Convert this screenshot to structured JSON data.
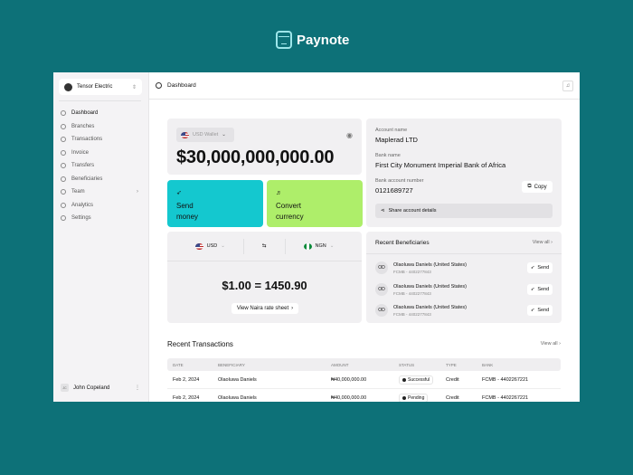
{
  "brand": {
    "name": "Paynote"
  },
  "sidebar": {
    "org": "Tensor Electric",
    "items": [
      {
        "label": "Dashboard"
      },
      {
        "label": "Branches"
      },
      {
        "label": "Transactions"
      },
      {
        "label": "Invoice"
      },
      {
        "label": "Transfers"
      },
      {
        "label": "Beneficiaries"
      },
      {
        "label": "Team"
      },
      {
        "label": "Analytics"
      },
      {
        "label": "Settings"
      }
    ],
    "user": {
      "initials": "JC",
      "name": "John Copeland"
    }
  },
  "header": {
    "title": "Dashboard"
  },
  "wallet": {
    "selector": "USD Wallet",
    "balance": "$30,000,000,000.00"
  },
  "actions": {
    "send": [
      "Send",
      "money"
    ],
    "convert": [
      "Convert",
      "currency"
    ]
  },
  "colors": {
    "send": "#14c8cf",
    "convert": "#aeee6a",
    "background": "#0d7178"
  },
  "converter": {
    "from": "USD",
    "to": "NGN",
    "rate": "$1.00 = 1450.90",
    "rate_sheet": "View Naira rate sheet"
  },
  "account": {
    "name_label": "Account name",
    "name": "Maplerad LTD",
    "bank_label": "Bank name",
    "bank": "First City Monument Imperial Bank of Africa",
    "number_label": "Bank account number",
    "number": "0121689727",
    "copy": "Copy",
    "share": "Share account details"
  },
  "beneficiaries": {
    "title": "Recent Beneficiaries",
    "view_all": "View all",
    "items": [
      {
        "initials": "OD",
        "name": "Olaoluwa Daniels (United States)",
        "sub": "FCMB - 4402277843",
        "action": "Send"
      },
      {
        "initials": "OD",
        "name": "Olaoluwa Daniels (United States)",
        "sub": "FCMB - 4402277843",
        "action": "Send"
      },
      {
        "initials": "OD",
        "name": "Olaoluwa Daniels (United States)",
        "sub": "FCMB - 4402277843",
        "action": "Send"
      }
    ]
  },
  "transactions": {
    "title": "Recent Transactions",
    "view_all": "View all",
    "columns": [
      "DATE",
      "BENEFICIARY",
      "AMOUNT",
      "STATUS",
      "TYPE",
      "BANK"
    ],
    "rows": [
      [
        "Feb 2, 2024",
        "Olaoluwa Daniels",
        "₦40,000,000.00",
        "Successful",
        "Credit",
        "FCMB - 4402267221"
      ],
      [
        "Feb 2, 2024",
        "Olaoluwa Daniels",
        "₦40,000,000.00",
        "Pending",
        "Credit",
        "FCMB - 4402267221"
      ]
    ]
  }
}
